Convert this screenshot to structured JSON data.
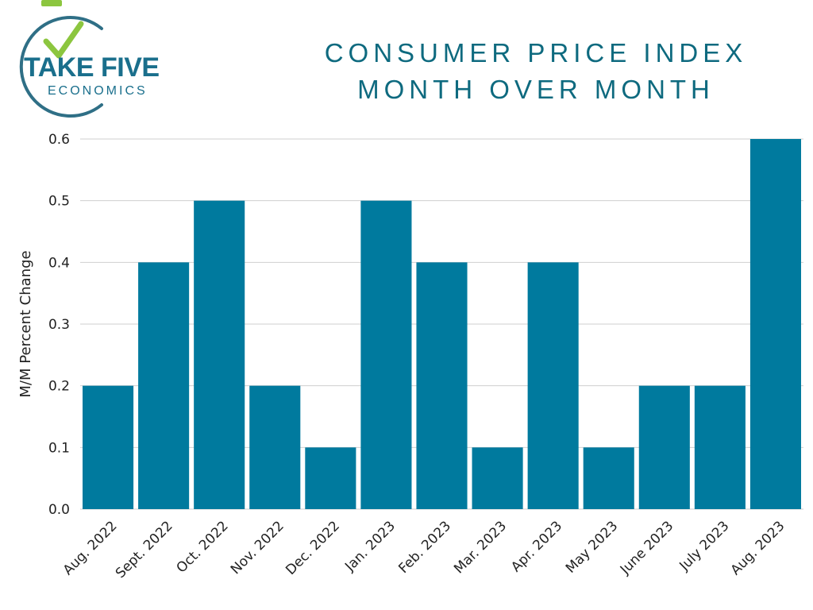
{
  "logo": {
    "line1": "TAKE FIVE",
    "line2": "ECONOMICS",
    "colors": {
      "arc": "#2f6f86",
      "check": "#8cc63f",
      "text": "#1a6f8c"
    }
  },
  "title": {
    "line1": "CONSUMER PRICE INDEX",
    "line2": "MONTH OVER MONTH"
  },
  "chart_data": {
    "type": "bar",
    "title": "CONSUMER PRICE INDEX MONTH OVER MONTH",
    "xlabel": "",
    "ylabel": "M/M Percent Change",
    "categories": [
      "Aug. 2022",
      "Sept. 2022",
      "Oct. 2022",
      "Nov. 2022",
      "Dec. 2022",
      "Jan. 2023",
      "Feb. 2023",
      "Mar. 2023",
      "Apr. 2023",
      "May 2023",
      "June 2023",
      "July 2023",
      "Aug. 2023"
    ],
    "values": [
      0.2,
      0.4,
      0.5,
      0.2,
      0.1,
      0.5,
      0.4,
      0.1,
      0.4,
      0.1,
      0.2,
      0.2,
      0.6
    ],
    "ylim": [
      0,
      0.6
    ],
    "yticks": [
      "0.0",
      "0.1",
      "0.2",
      "0.3",
      "0.4",
      "0.5",
      "0.6"
    ],
    "grid": true,
    "legend": "none",
    "bar_color": "#007a9e",
    "grid_color": "#cfcfcf"
  }
}
